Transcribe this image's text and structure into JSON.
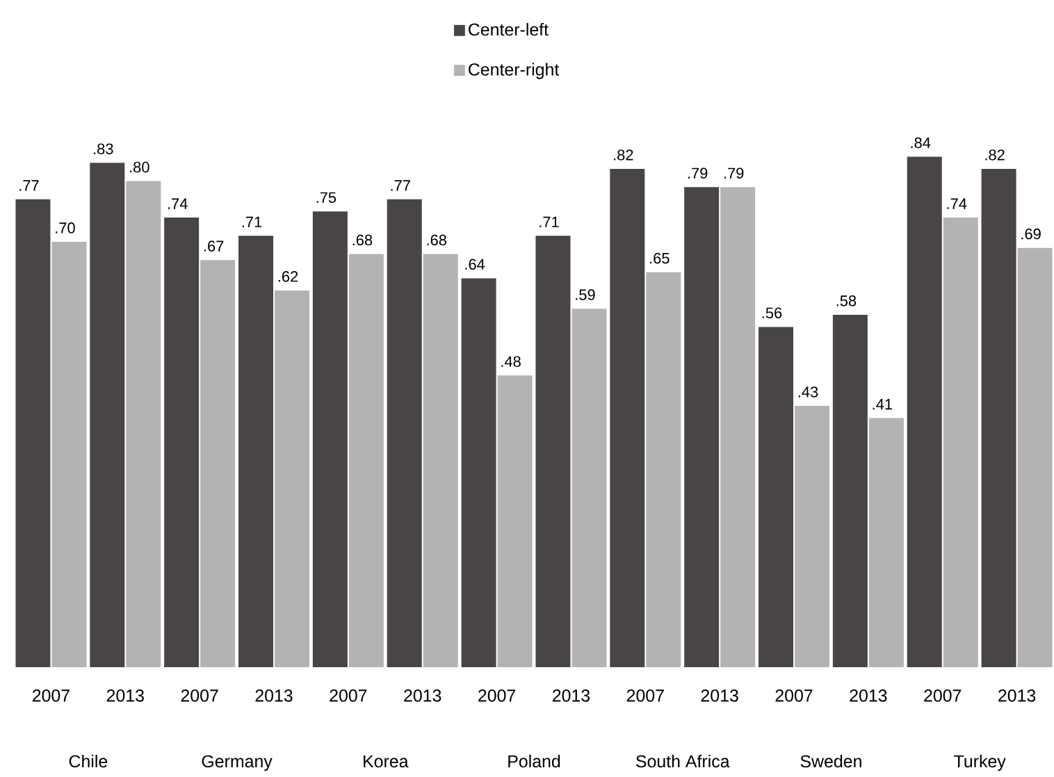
{
  "chart_data": {
    "type": "bar",
    "categories": [
      "2007",
      "2013",
      "2007",
      "2013",
      "2007",
      "2013",
      "2007",
      "2013",
      "2007",
      "2013",
      "2007",
      "2013",
      "2007",
      "2013"
    ],
    "series": [
      {
        "name": "Center-left",
        "color": "#4a4545",
        "values": [
          0.77,
          0.83,
          0.74,
          0.71,
          0.75,
          0.77,
          0.64,
          0.71,
          0.82,
          0.79,
          0.56,
          0.58,
          0.84,
          0.82
        ],
        "value_labels": [
          ".77",
          ".83",
          ".74",
          ".71",
          ".75",
          ".77",
          ".64",
          ".71",
          ".82",
          ".79",
          ".56",
          ".58",
          ".84",
          ".82"
        ]
      },
      {
        "name": "Center-right",
        "color": "#b3b3b3",
        "values": [
          0.7,
          0.8,
          0.67,
          0.62,
          0.68,
          0.68,
          0.48,
          0.59,
          0.65,
          0.79,
          0.43,
          0.41,
          0.74,
          0.69
        ],
        "value_labels": [
          ".70",
          ".80",
          ".67",
          ".62",
          ".68",
          ".68",
          ".48",
          ".59",
          ".65",
          ".79",
          ".43",
          ".41",
          ".74",
          ".69"
        ]
      }
    ],
    "annotations": [
      "Chile",
      "Germany",
      "Korea",
      "Poland",
      "South Africa",
      "Sweden",
      "Turkey"
    ],
    "legend": "top"
  }
}
